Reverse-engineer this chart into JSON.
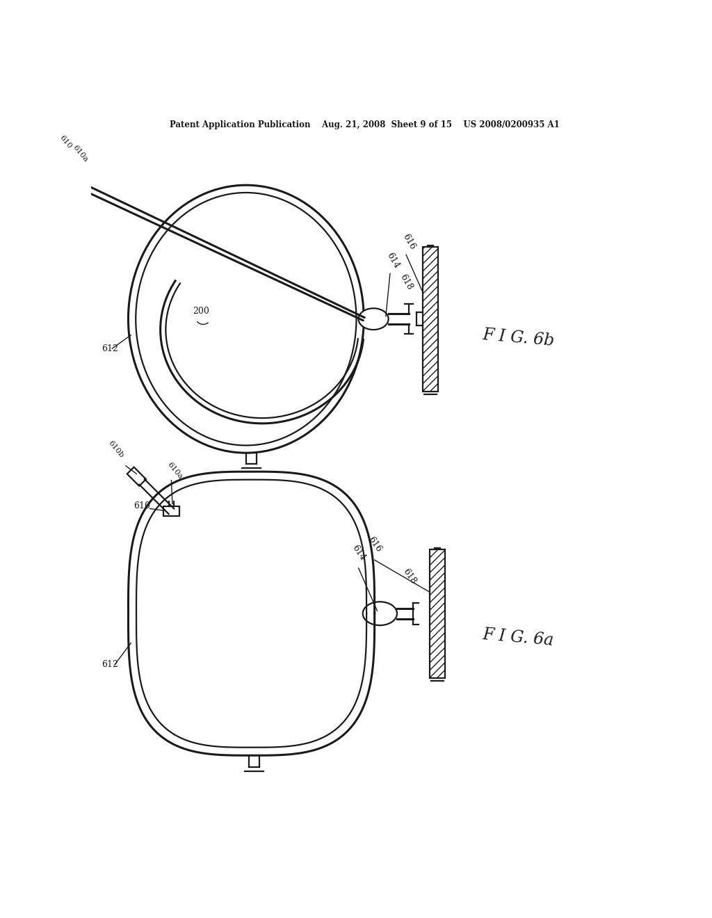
{
  "bg_color": "#ffffff",
  "line_color": "#1a1a1a",
  "header_text": "Patent Application Publication    Aug. 21, 2008  Sheet 9 of 15    US 2008/0200935 A1",
  "fig6b_label": "F I G. 6b",
  "fig6a_label": "F I G. 6a",
  "lw": 1.6,
  "lw2": 2.2,
  "lw3": 1.0
}
